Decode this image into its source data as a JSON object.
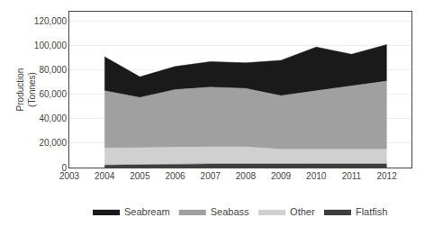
{
  "chart_data": {
    "type": "area",
    "stacked": true,
    "x": [
      2004,
      2005,
      2006,
      2007,
      2008,
      2009,
      2010,
      2011,
      2012
    ],
    "series": [
      {
        "name": "Flatfish",
        "color": "#3d3d3d",
        "values": [
          2000,
          2500,
          3000,
          3000,
          3000,
          3000,
          3000,
          3000,
          3000
        ]
      },
      {
        "name": "Other",
        "color": "#d0d0d0",
        "values": [
          14000,
          14000,
          14000,
          14000,
          14000,
          12000,
          12000,
          12000,
          12000
        ]
      },
      {
        "name": "Seabass",
        "color": "#a0a0a0",
        "values": [
          47000,
          41000,
          47000,
          49000,
          48000,
          44000,
          48000,
          52000,
          56000
        ]
      },
      {
        "name": "Seabream",
        "color": "#1a1a1a",
        "values": [
          28000,
          17000,
          19000,
          21000,
          21000,
          29000,
          36000,
          26000,
          30000
        ]
      }
    ],
    "ylabel": "Production\n(Tonnes)",
    "xlim": [
      2003,
      2012.7
    ],
    "xticks": [
      2003,
      2004,
      2005,
      2006,
      2007,
      2008,
      2009,
      2010,
      2011,
      2012
    ],
    "ylim": [
      0,
      128000
    ],
    "yticks": [
      0,
      {
        "value": 20000,
        "label": "20,000"
      },
      {
        "value": 40000,
        "label": "40,000"
      },
      {
        "value": 60000,
        "label": "60,000"
      },
      {
        "value": 80000,
        "label": "80,000"
      },
      {
        "value": 100000,
        "label": "100,000"
      },
      {
        "value": 120000,
        "label": "120,000"
      }
    ],
    "grid": true,
    "legend": "bottom"
  }
}
